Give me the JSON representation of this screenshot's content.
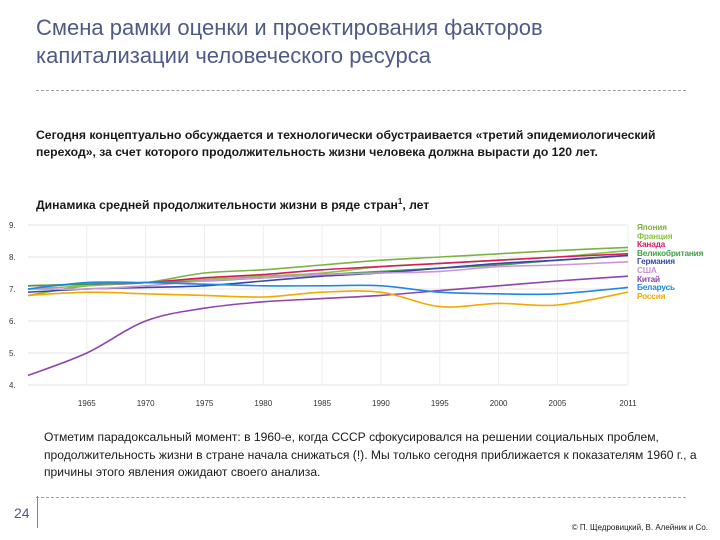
{
  "slide": {
    "title_line1": "Смена рамки оценки и проектирования факторов",
    "title_line2": "капитализации человеческого ресурса",
    "intro": "Сегодня концептуально обсуждается и технологически обустраивается «третий эпидемиологический переход», за счет которого продолжительность жизни человека должна вырасти до 120 лет.",
    "chart_heading": "Динамика средней продолжительности жизни в ряде стран",
    "chart_heading_sup": "1",
    "chart_heading_suffix": ", лет",
    "note": "Отметим парадоксальный момент: в 1960-е, когда СССР сфокусировался на решении социальных проблем, продолжительность жизни в стране начала снижаться (!). Мы только сегодня приближается к показателям 1960 г., а причины этого явления ожидают своего анализа.",
    "page_number": "24",
    "copyright": "© П. Щедровицкий, В. Алейник и Co."
  },
  "chart_data": {
    "type": "line",
    "x": [
      1960,
      1965,
      1970,
      1975,
      1980,
      1985,
      1990,
      1995,
      2000,
      2005,
      2011
    ],
    "x_ticks": [
      "1965",
      "1970",
      "1975",
      "1980",
      "1985",
      "1990",
      "1995",
      "2000",
      "2005",
      "2011"
    ],
    "y_ticks": [
      "9.",
      "8.",
      "7.",
      "6.",
      "5.",
      "4."
    ],
    "y_tick_values": [
      90,
      80,
      70,
      60,
      50,
      40
    ],
    "ylim": [
      40,
      90
    ],
    "grid": true,
    "legend_position": "right",
    "series": [
      {
        "name": "Япония",
        "color": "#7cb342",
        "values": [
          68,
          71,
          72,
          75,
          76,
          77.5,
          79,
          80,
          81,
          82,
          83
        ]
      },
      {
        "name": "Франция",
        "color": "#8bc34a",
        "values": [
          70,
          71,
          72,
          73,
          74,
          75,
          77,
          78,
          79,
          80,
          82
        ]
      },
      {
        "name": "Канада",
        "color": "#d81b60",
        "values": [
          71,
          71.5,
          72,
          73.5,
          74.5,
          76,
          77,
          78,
          79,
          80,
          81
        ]
      },
      {
        "name": "Великобритания",
        "color": "#43a047",
        "values": [
          71,
          71.5,
          72,
          72.5,
          73.5,
          74.5,
          75.5,
          76.5,
          77.5,
          79,
          80.5
        ]
      },
      {
        "name": "Германия",
        "color": "#3949ab",
        "values": [
          69,
          70,
          70.5,
          71,
          72.5,
          74,
          75,
          76.5,
          78,
          79,
          80.5
        ]
      },
      {
        "name": "США",
        "color": "#ce93d8",
        "values": [
          70,
          70,
          71,
          72.5,
          73.5,
          74.5,
          75,
          75.5,
          77,
          77.5,
          78.5
        ]
      },
      {
        "name": "Китай",
        "color": "#8e44ad",
        "values": [
          43,
          50,
          60,
          64,
          66,
          67,
          68,
          69.5,
          71,
          72.5,
          74
        ]
      },
      {
        "name": "Беларусь",
        "color": "#1e88e5",
        "values": [
          70,
          72,
          72,
          71.5,
          71,
          71,
          71,
          69,
          68.5,
          68.5,
          70.5
        ]
      },
      {
        "name": "Россия",
        "color": "#f2a900",
        "values": [
          68,
          69,
          68.5,
          68,
          67.5,
          69,
          69,
          64.5,
          65.5,
          65,
          69
        ]
      }
    ]
  }
}
